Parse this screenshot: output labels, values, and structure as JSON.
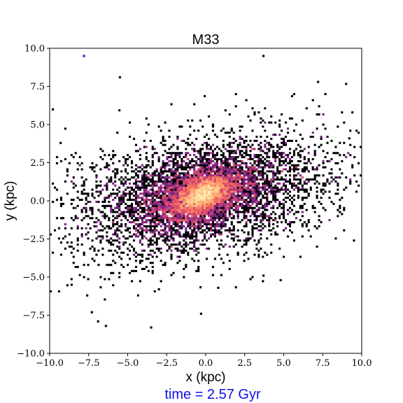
{
  "chart_data": {
    "type": "heatmap",
    "title": "M33",
    "xlabel": "x (kpc)",
    "ylabel": "y (kpc)",
    "xlim": [
      -10.0,
      10.0
    ],
    "ylim": [
      -10.0,
      10.0
    ],
    "x_ticks": [
      -10.0,
      -7.5,
      -5.0,
      -2.5,
      0.0,
      2.5,
      5.0,
      7.5,
      10.0
    ],
    "y_ticks": [
      -10.0,
      -7.5,
      -5.0,
      -2.5,
      0.0,
      2.5,
      5.0,
      7.5,
      10.0
    ],
    "x_tick_labels": [
      "−10.0",
      "−7.5",
      "−5.0",
      "−2.5",
      "0.0",
      "2.5",
      "5.0",
      "7.5",
      "10.0"
    ],
    "y_tick_labels": [
      "−10.0",
      "−7.5",
      "−5.0",
      "−2.5",
      "0.0",
      "2.5",
      "5.0",
      "7.5",
      "10.0"
    ],
    "grid": false,
    "colormap": "magma_r",
    "distribution": {
      "center": [
        -0.2,
        0.4
      ],
      "disk_major_sigma": 4.2,
      "disk_minor_sigma": 1.9,
      "position_angle_deg": 12,
      "core_major_sigma": 0.9,
      "core_minor_sigma": 0.45,
      "core_position_angle_deg": 25
    },
    "outliers": [
      {
        "x": -7.8,
        "y": 9.5,
        "color": "#1a1aff"
      },
      {
        "x": 3.7,
        "y": 9.5
      },
      {
        "x": 7.2,
        "y": 7.8
      },
      {
        "x": -5.5,
        "y": 8.1
      },
      {
        "x": -8.6,
        "y": -5.5
      },
      {
        "x": -7.6,
        "y": -6.2
      },
      {
        "x": -7.3,
        "y": -7.3
      },
      {
        "x": -6.9,
        "y": -7.9
      },
      {
        "x": -6.4,
        "y": -8.2
      },
      {
        "x": -3.5,
        "y": -8.3
      },
      {
        "x": -0.3,
        "y": -7.4
      },
      {
        "x": 4.8,
        "y": -5.2
      },
      {
        "x": 3.7,
        "y": -4.9
      },
      {
        "x": 0.8,
        "y": -5.7
      },
      {
        "x": 9.8,
        "y": 1.0
      },
      {
        "x": 9.5,
        "y": -2.6
      },
      {
        "x": 9.2,
        "y": 4.1
      },
      {
        "x": -9.8,
        "y": 6.0
      },
      {
        "x": -9.3,
        "y": 3.8
      }
    ]
  },
  "time_label": "time = 2.57 Gyr",
  "colors": {
    "time_label": "#1010ee",
    "axes": "#000000",
    "background": "#ffffff"
  }
}
